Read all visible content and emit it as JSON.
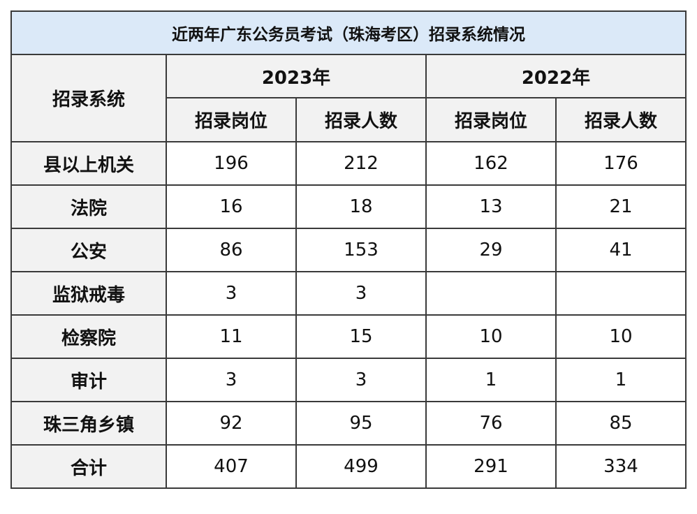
{
  "title": "近两年广东公务员考试（珠海考区）招录系统情况",
  "header": {
    "system_label": "招录系统",
    "years": [
      "2023年",
      "2022年"
    ],
    "sub_cols": [
      "招录岗位",
      "招录人数",
      "招录岗位",
      "招录人数"
    ]
  },
  "rows": [
    {
      "name": "县以上机关",
      "v": [
        "196",
        "212",
        "162",
        "176"
      ]
    },
    {
      "name": "法院",
      "v": [
        "16",
        "18",
        "13",
        "21"
      ]
    },
    {
      "name": "公安",
      "v": [
        "86",
        "153",
        "29",
        "41"
      ]
    },
    {
      "name": "监狱戒毒",
      "v": [
        "3",
        "3",
        "",
        ""
      ]
    },
    {
      "name": "检察院",
      "v": [
        "11",
        "15",
        "10",
        "10"
      ]
    },
    {
      "name": "审计",
      "v": [
        "3",
        "3",
        "1",
        "1"
      ]
    },
    {
      "name": "珠三角乡镇",
      "v": [
        "92",
        "95",
        "76",
        "85"
      ]
    },
    {
      "name": "合计",
      "v": [
        "407",
        "499",
        "291",
        "334"
      ]
    }
  ]
}
